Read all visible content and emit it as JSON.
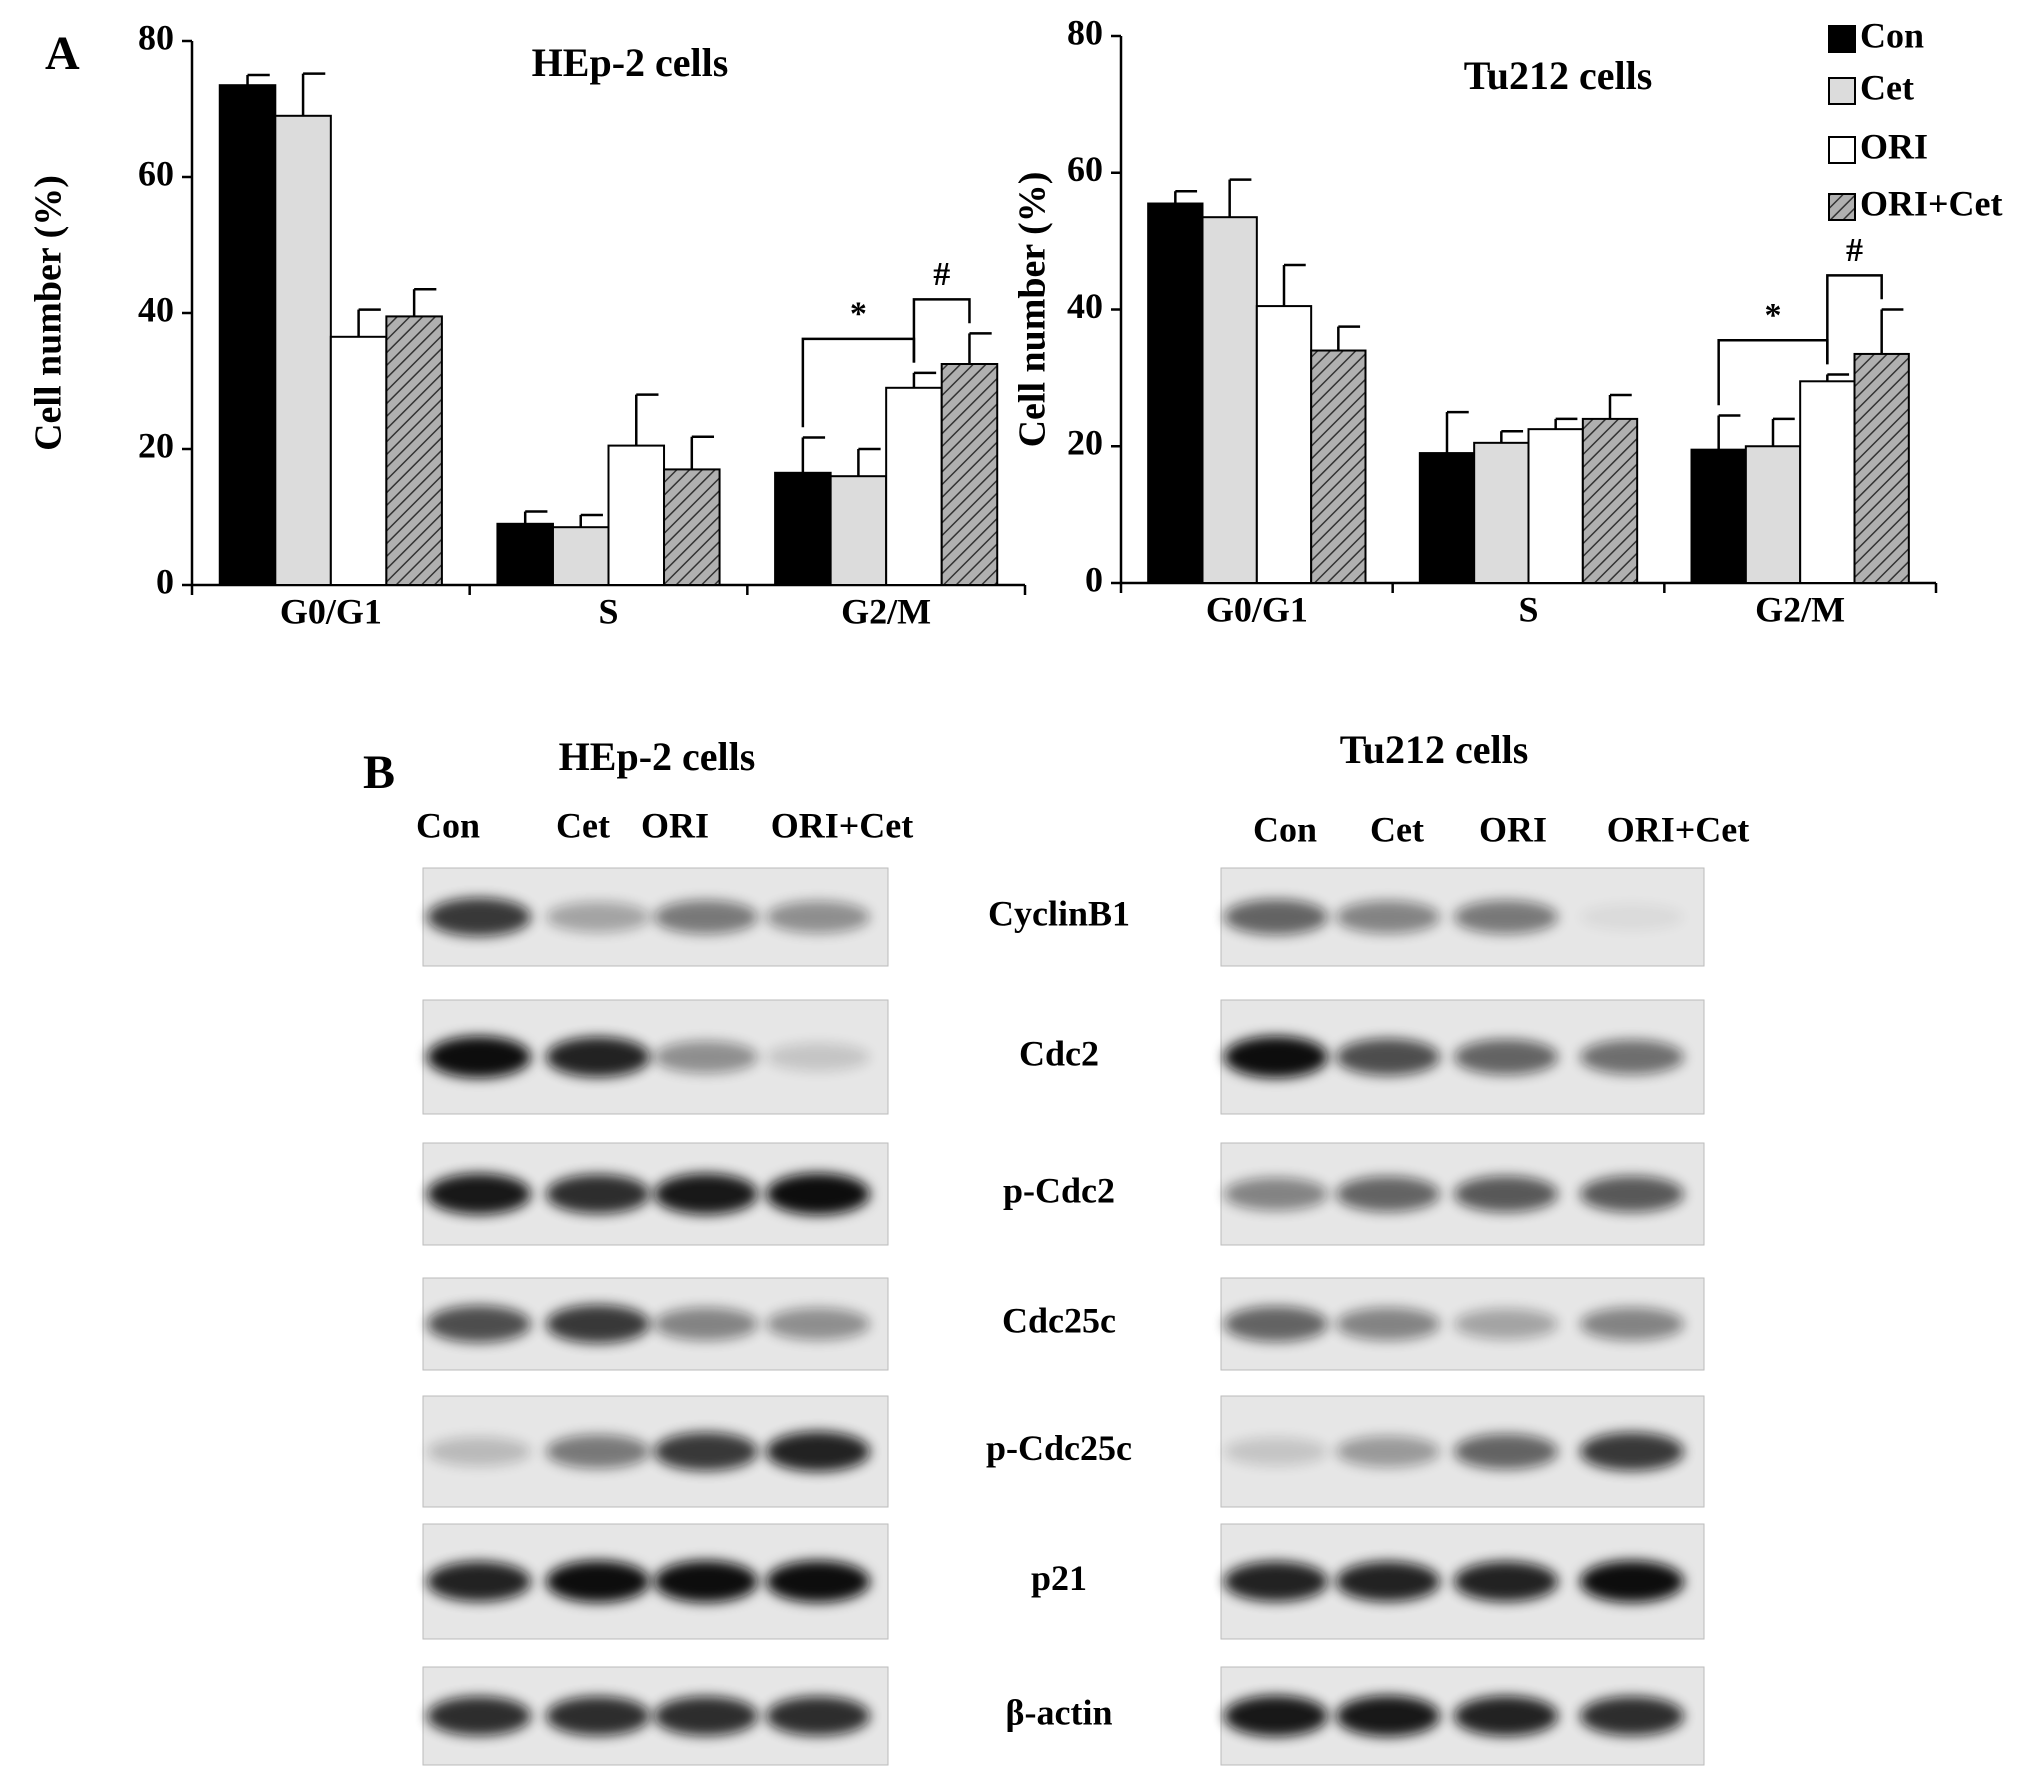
{
  "panel_labels": [
    "A",
    "B"
  ],
  "chart_data": [
    {
      "type": "bar",
      "title": "HEp-2 cells",
      "ylabel": "Cell number (%)",
      "categories": [
        "G0/G1",
        "S",
        "G2/M"
      ],
      "ylim": [
        0,
        80
      ],
      "yticks": [
        0,
        20,
        40,
        60,
        80
      ],
      "series": [
        {
          "name": "Con",
          "color": "#000000",
          "values": [
            73.5,
            9,
            16.5
          ],
          "errors": [
            1.5,
            1.8,
            5.2
          ]
        },
        {
          "name": "Cet",
          "color": "#dcdcdc",
          "values": [
            69,
            8.5,
            16
          ],
          "errors": [
            6.2,
            1.8,
            4
          ]
        },
        {
          "name": "ORI",
          "color": "#ffffff",
          "values": [
            36.5,
            20.5,
            29
          ],
          "errors": [
            4,
            7.5,
            2.2
          ]
        },
        {
          "name": "ORI+Cet",
          "color": "#9a9a9a",
          "hatch": true,
          "values": [
            39.5,
            17,
            32.5
          ],
          "errors": [
            4,
            4.8,
            4.5
          ]
        }
      ],
      "annotations": [
        "*",
        "#"
      ]
    },
    {
      "type": "bar",
      "title": "Tu212 cells",
      "ylabel": "Cell number (%)",
      "categories": [
        "G0/G1",
        "S",
        "G2/M"
      ],
      "ylim": [
        0,
        80
      ],
      "yticks": [
        0,
        20,
        40,
        60,
        80
      ],
      "legend": "upper right",
      "series": [
        {
          "name": "Con",
          "color": "#000000",
          "values": [
            55.5,
            19,
            19.5
          ],
          "errors": [
            1.8,
            6,
            5
          ]
        },
        {
          "name": "Cet",
          "color": "#dcdcdc",
          "values": [
            53.5,
            20.5,
            20
          ],
          "errors": [
            5.5,
            1.7,
            4
          ]
        },
        {
          "name": "ORI",
          "color": "#ffffff",
          "values": [
            40.5,
            22.5,
            29.5
          ],
          "errors": [
            6,
            1.5,
            1
          ]
        },
        {
          "name": "ORI+Cet",
          "color": "#9a9a9a",
          "hatch": true,
          "values": [
            34,
            24,
            33.5
          ],
          "errors": [
            3.5,
            3.5,
            6.5
          ]
        }
      ],
      "annotations": [
        "*",
        "#"
      ]
    }
  ],
  "blots": {
    "panels": [
      {
        "title": "HEp-2 cells",
        "lanes": [
          "Con",
          "Cet",
          "ORI",
          "ORI+Cet"
        ]
      },
      {
        "title": "Tu212 cells",
        "lanes": [
          "Con",
          "Cet",
          "ORI",
          "ORI+Cet"
        ]
      }
    ],
    "proteins": [
      "CyclinB1",
      "Cdc2",
      "p-Cdc2",
      "Cdc25c",
      "p-Cdc25c",
      "p21",
      "β-actin"
    ]
  }
}
